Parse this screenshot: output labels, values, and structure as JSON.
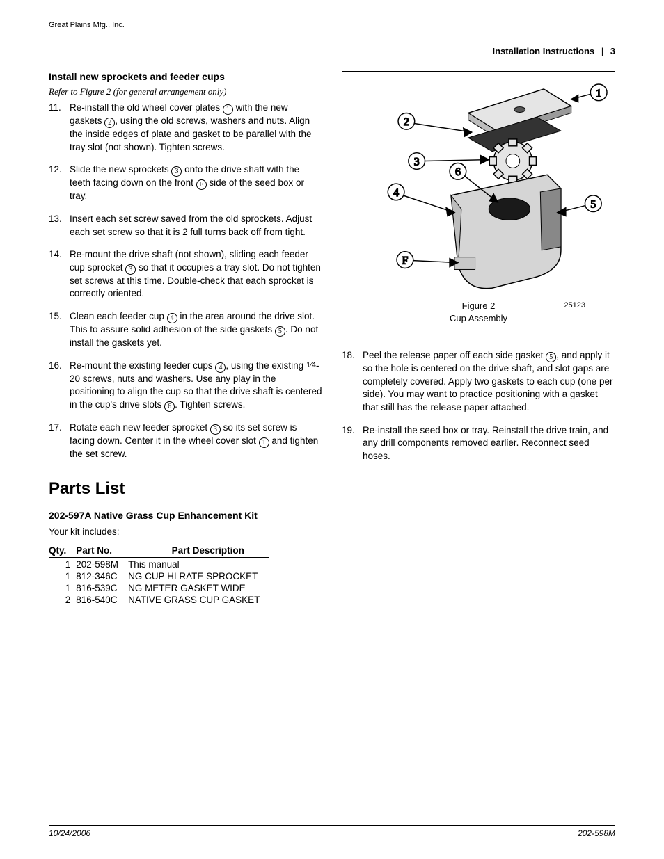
{
  "top_header": "Great Plains Mfg., Inc.",
  "header": {
    "title": "Installation Instructions",
    "page": "3"
  },
  "section1": {
    "heading": "Install new sprockets and feeder cups",
    "refer": "Refer to Figure 2 (for general arrangement only)"
  },
  "steps_left": [
    {
      "pre": "Re-install the old wheel cover plates ",
      "c1": "1",
      "mid1": " with the new gaskets ",
      "c2": "2",
      "post": ", using the old screws, washers and nuts. Align the inside edges of plate and gasket to be parallel with the tray slot (not shown). Tighten screws."
    },
    {
      "pre": "Slide the new sprockets ",
      "c1": "3",
      "mid1": " onto the drive shaft with the teeth facing down on the front ",
      "c2": "F",
      "post": " side of the seed box or tray."
    },
    {
      "pre": "Insert each set screw saved from the old sprockets. Adjust each set screw so that it is 2 full turns back off from tight.",
      "c1": "",
      "mid1": "",
      "c2": "",
      "post": ""
    },
    {
      "pre": "Re-mount the drive shaft (not shown), sliding each feeder cup sprocket ",
      "c1": "3",
      "mid1": " so that it occupies a tray slot. Do not tighten set screws at this time. Double-check that each sprocket is correctly oriented.",
      "c2": "",
      "post": ""
    },
    {
      "pre": "Clean each feeder cup ",
      "c1": "4",
      "mid1": " in the area around the drive slot. This to assure solid adhesion of the side gaskets ",
      "c2": "5",
      "post": ". Do not install the gaskets yet."
    },
    {
      "pre": "Re-mount the existing feeder cups ",
      "c1": "4",
      "mid1": ", using the existing ",
      "frac": "1⁄4",
      "mid2": "-20 screws, nuts and washers. Use any play in the positioning to align the cup so that the drive shaft is centered in the cup's drive slots ",
      "c2": "6",
      "post": ". Tighten screws."
    },
    {
      "pre": "Rotate each new feeder sprocket ",
      "c1": "3",
      "mid1": " so its set screw is facing down. Center it in the wheel cover slot ",
      "c2": "1",
      "post": " and tighten the set screw."
    }
  ],
  "steps_right": [
    {
      "pre": "Peel the release paper off each side gasket ",
      "c1": "5",
      "post": ", and apply it so the hole is centered on the drive shaft, and slot gaps are completely covered. Apply two gaskets to each cup (one per side). You may want to practice positioning with a gasket that still has the release paper attached."
    },
    {
      "pre": "Re-install the seed box or tray. Reinstall the drive train, and any drill components removed earlier. Reconnect seed hoses.",
      "c1": "",
      "post": ""
    }
  ],
  "figure": {
    "label": "Figure 2",
    "name": "Cup Assembly",
    "refnum": "25123",
    "callouts": [
      "1",
      "2",
      "3",
      "4",
      "5",
      "6",
      "F"
    ],
    "colors": {
      "stroke": "#000000",
      "fill_light": "#e5e5e5",
      "fill_mid": "#bdbdbd",
      "fill_dark": "#333333",
      "bg": "#ffffff"
    }
  },
  "parts": {
    "heading": "Parts List",
    "kit": "202-597A Native Grass Cup Enhancement Kit",
    "includes": "Your kit includes:",
    "columns": [
      "Qty.",
      "Part No.",
      "Part Description"
    ],
    "rows": [
      [
        "1",
        "202-598M",
        "This manual"
      ],
      [
        "1",
        "812-346C",
        "NG CUP HI RATE SPROCKET"
      ],
      [
        "1",
        "816-539C",
        "NG METER GASKET WIDE"
      ],
      [
        "2",
        "816-540C",
        "NATIVE GRASS CUP GASKET"
      ]
    ]
  },
  "footer": {
    "date": "10/24/2006",
    "doc": "202-598M"
  }
}
